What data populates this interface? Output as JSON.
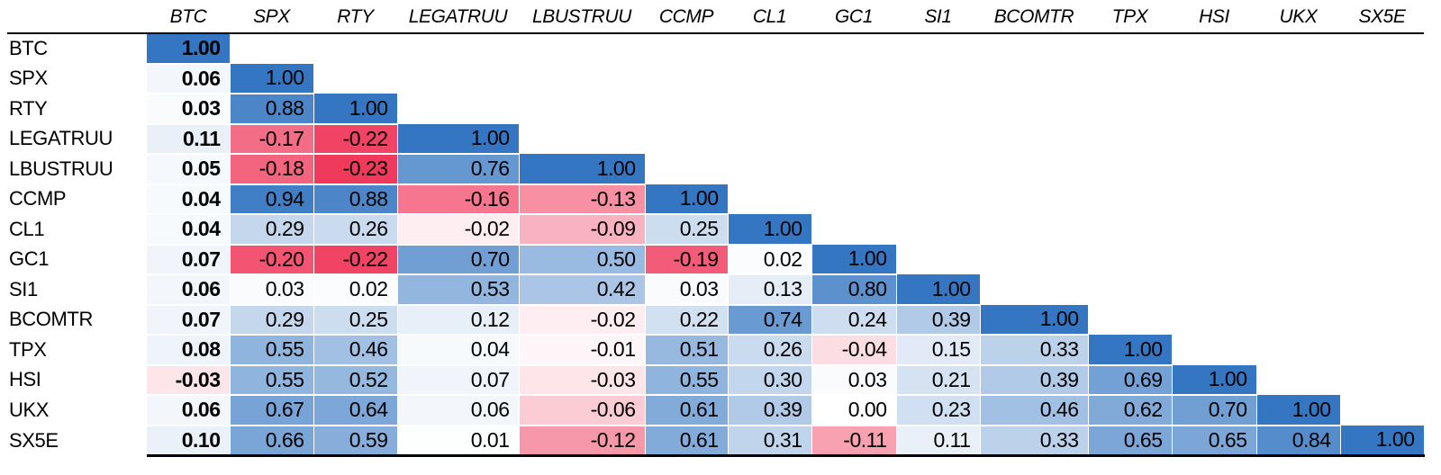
{
  "chart_data": {
    "type": "heatmap",
    "title": "",
    "labels": [
      "BTC",
      "SPX",
      "RTY",
      "LEGATRUU",
      "LBUSTRUU",
      "CCMP",
      "CL1",
      "GC1",
      "SI1",
      "BCOMTR",
      "TPX",
      "HSI",
      "UKX",
      "SX5E"
    ],
    "lower_triangle": [
      [
        1.0
      ],
      [
        0.06,
        1.0
      ],
      [
        0.03,
        0.88,
        1.0
      ],
      [
        0.11,
        -0.17,
        -0.22,
        1.0
      ],
      [
        0.05,
        -0.18,
        -0.23,
        0.76,
        1.0
      ],
      [
        0.04,
        0.94,
        0.88,
        -0.16,
        -0.13,
        1.0
      ],
      [
        0.04,
        0.29,
        0.26,
        -0.02,
        -0.09,
        0.25,
        1.0
      ],
      [
        0.07,
        -0.2,
        -0.22,
        0.7,
        0.5,
        -0.19,
        0.02,
        1.0
      ],
      [
        0.06,
        0.03,
        0.02,
        0.53,
        0.42,
        0.03,
        0.13,
        0.8,
        1.0
      ],
      [
        0.07,
        0.29,
        0.25,
        0.12,
        -0.02,
        0.22,
        0.74,
        0.24,
        0.39,
        1.0
      ],
      [
        0.08,
        0.55,
        0.46,
        0.04,
        -0.01,
        0.51,
        0.26,
        -0.04,
        0.15,
        0.33,
        1.0
      ],
      [
        -0.03,
        0.55,
        0.52,
        0.07,
        -0.03,
        0.55,
        0.3,
        0.03,
        0.21,
        0.39,
        0.69,
        1.0
      ],
      [
        0.06,
        0.67,
        0.64,
        0.06,
        -0.06,
        0.61,
        0.39,
        0.0,
        0.23,
        0.46,
        0.62,
        0.7,
        1.0
      ],
      [
        0.1,
        0.66,
        0.59,
        0.01,
        -0.12,
        0.61,
        0.31,
        -0.11,
        0.11,
        0.33,
        0.65,
        0.65,
        0.84,
        1.0
      ]
    ],
    "value_decimals": 2,
    "color_scale": {
      "positive_max": 1.0,
      "negative_min": -0.23,
      "positive_color": "#3476C2",
      "negative_color": "#F03A5C",
      "zero_color": "#FFFFFF"
    },
    "legend_position": "none",
    "grid": "off"
  }
}
